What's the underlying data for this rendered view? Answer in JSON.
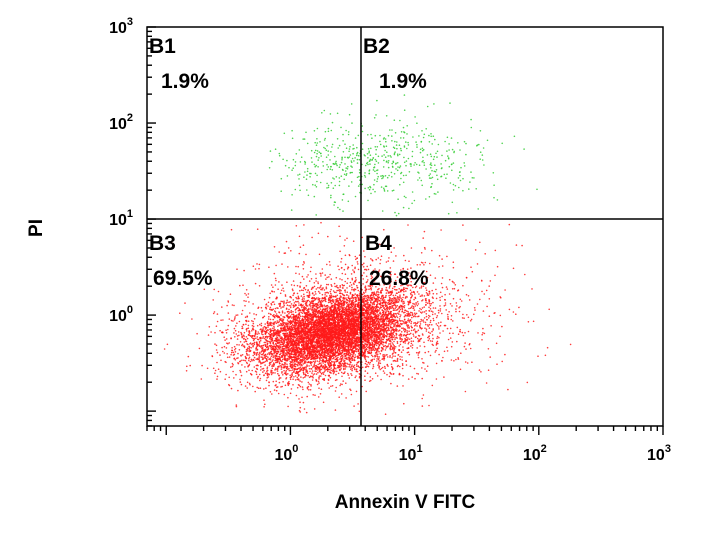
{
  "chart_data": {
    "type": "scatter",
    "title": "",
    "xlabel": "Annexin V FITC",
    "ylabel": "PI",
    "x_scale": "log",
    "y_scale": "log",
    "xlim": [
      0.07,
      1000
    ],
    "ylim": [
      0.07,
      1000
    ],
    "x_tick_labels": [
      {
        "value": 1,
        "base": "10",
        "exp": "0"
      },
      {
        "value": 10,
        "base": "10",
        "exp": "1"
      },
      {
        "value": 100,
        "base": "10",
        "exp": "2"
      },
      {
        "value": 1000,
        "base": "10",
        "exp": "3"
      }
    ],
    "y_tick_labels": [
      {
        "value": 1,
        "base": "10",
        "exp": "0"
      },
      {
        "value": 10,
        "base": "10",
        "exp": "1"
      },
      {
        "value": 100,
        "base": "10",
        "exp": "2"
      },
      {
        "value": 1000,
        "base": "10",
        "exp": "3"
      }
    ],
    "gates": {
      "x_threshold": 3.7,
      "y_threshold": 10
    },
    "quadrants": [
      {
        "id": "B1",
        "label": "B1",
        "percent": "1.9%"
      },
      {
        "id": "B2",
        "label": "B2",
        "percent": "1.9%"
      },
      {
        "id": "B3",
        "label": "B3",
        "percent": "69.5%"
      },
      {
        "id": "B4",
        "label": "B4",
        "percent": "26.8%"
      }
    ],
    "series": [
      {
        "color": "#ff1a1a",
        "population": "below PI threshold",
        "centroid": {
          "x": 2.0,
          "y": 0.65
        },
        "approx_count": 9000
      },
      {
        "color": "#33cc33",
        "population": "above PI threshold",
        "centroid": {
          "x": 5.0,
          "y": 40
        },
        "approx_count": 600
      }
    ],
    "grid": false,
    "legend": "none"
  }
}
